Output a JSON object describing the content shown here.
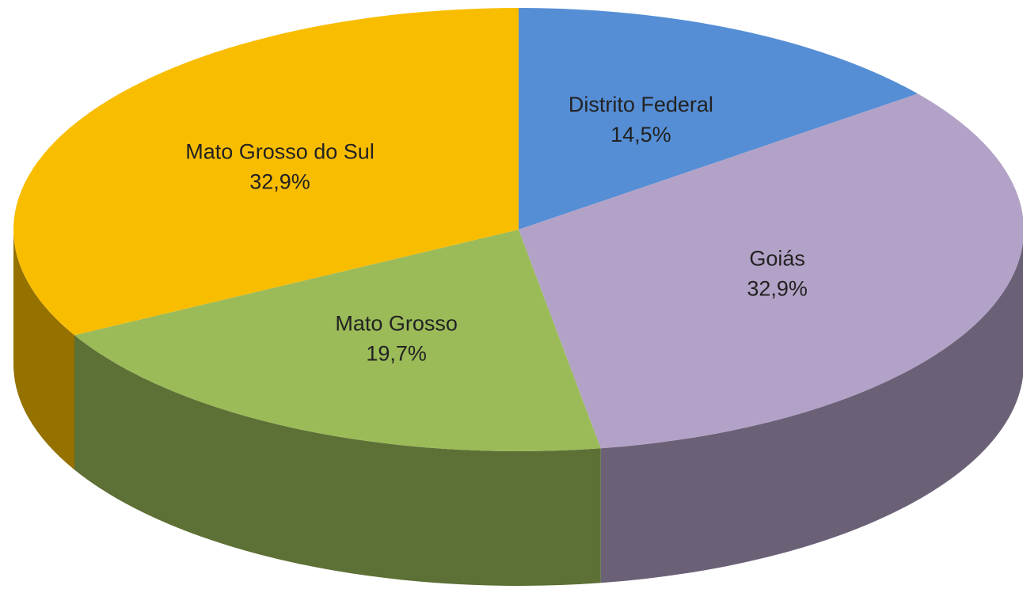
{
  "chart_data": {
    "type": "pie",
    "categories": [
      "Distrito Federal",
      "Goiás",
      "Mato Grosso",
      "Mato Grosso do Sul"
    ],
    "values": [
      14.5,
      32.9,
      19.7,
      32.9
    ],
    "value_labels": [
      "14,5%",
      "32,9%",
      "19,7%",
      "32,9%"
    ],
    "colors": [
      "#558ed5",
      "#b3a2c7",
      "#9bbb59",
      "#f9bd00"
    ]
  }
}
